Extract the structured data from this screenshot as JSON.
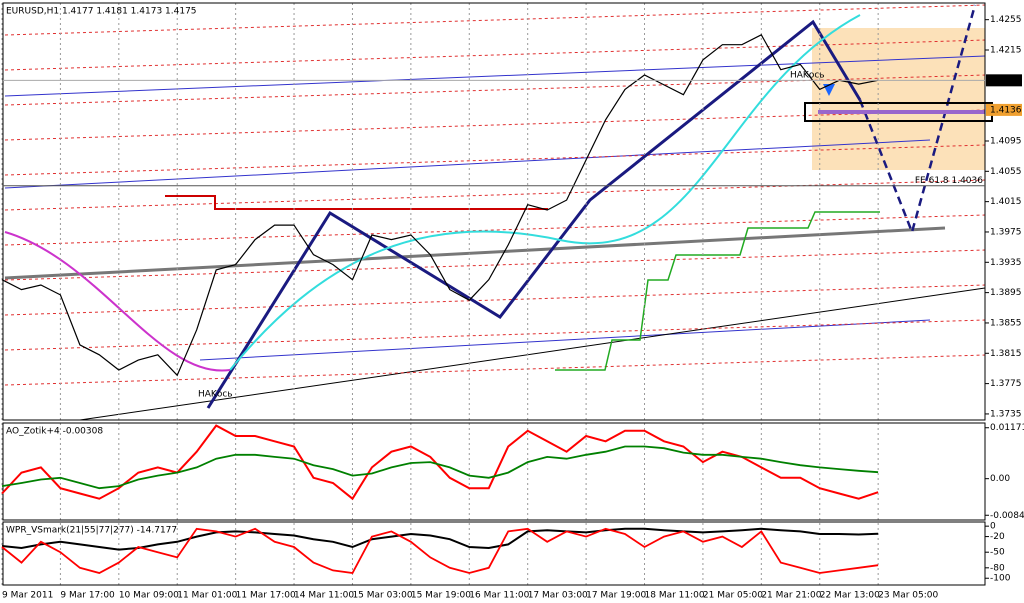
{
  "chart_data": [
    {
      "type": "line",
      "title": "EURUSD,H1  1.4177 1.4181 1.4173 1.4175",
      "categories": [
        "9 Mar 2011",
        null,
        null,
        "9 Mar 17:00",
        null,
        null,
        "10 Mar 09:00",
        null,
        null,
        "11 Mar 01:00",
        null,
        null,
        "11 Mar 17:00",
        null,
        null,
        "14 Mar 11:00",
        null,
        null,
        "15 Mar 03:00",
        null,
        null,
        "15 Mar 19:00",
        null,
        null,
        "16 Mar 11:00",
        null,
        null,
        "17 Mar 03:00",
        null,
        null,
        "17 Mar 19:00",
        null,
        null,
        "18 Mar 11:00",
        null,
        null,
        "21 Mar 05:00",
        null,
        null,
        "21 Mar 21:00",
        null,
        null,
        "22 Mar 13:00",
        null,
        null,
        "23 Mar 05:00"
      ],
      "values": [
        1.3912,
        1.3899,
        1.3905,
        1.3892,
        1.3826,
        1.3813,
        1.3793,
        1.3806,
        1.3813,
        1.3786,
        1.3846,
        1.3925,
        1.3932,
        1.3965,
        1.3984,
        1.3984,
        1.3945,
        1.3932,
        1.3912,
        1.3971,
        1.3965,
        1.3971,
        1.3945,
        1.3899,
        1.3885,
        1.3912,
        1.3958,
        1.4011,
        1.4004,
        1.4017,
        1.407,
        1.4123,
        1.4163,
        1.4182,
        1.4169,
        1.4156,
        1.4202,
        1.4222,
        1.4222,
        1.4235,
        1.4189,
        1.4196,
        1.4163,
        1.4175,
        1.417,
        1.4175
      ],
      "color": "#000000",
      "ylim": [
        1.3727,
        1.4277
      ],
      "yticks": [
        1.3735,
        1.3775,
        1.3815,
        1.3855,
        1.3895,
        1.3935,
        1.3975,
        1.4015,
        1.4055,
        1.4095,
        1.4215,
        1.4255
      ],
      "grid": true,
      "last_price": 1.4175,
      "level": 1.4136,
      "fe_label": "FE 61.8 1.4036",
      "fe_level": 1.4036,
      "annotations": [
        "HAKось",
        "HAKось"
      ]
    },
    {
      "type": "line",
      "title": "AO_Zotik+4 -0.00308",
      "series": [
        {
          "color": "#ff0000",
          "values": [
            -0.0034,
            0.0014,
            0.0026,
            -0.0022,
            -0.0034,
            -0.0046,
            -0.0022,
            0.0014,
            0.0026,
            0.0014,
            0.0062,
            0.0122,
            0.0098,
            0.0098,
            0.0086,
            0.0074,
            0.0002,
            -0.001,
            -0.0046,
            0.0026,
            0.0062,
            0.0074,
            0.005,
            0.0002,
            -0.0022,
            -0.0022,
            0.0074,
            0.011,
            0.0086,
            0.0062,
            0.0098,
            0.0086,
            0.011,
            0.011,
            0.0086,
            0.0074,
            0.0038,
            0.0062,
            0.005,
            0.0026,
            0.0002,
            0.0002,
            -0.0022,
            -0.0034,
            -0.0046,
            -0.0031
          ]
        },
        {
          "color": "#008000",
          "values": [
            -0.0017,
            -0.001,
            -0.0002,
            0.0002,
            -0.001,
            -0.0022,
            -0.0017,
            -0.0002,
            0.0007,
            0.0014,
            0.0026,
            0.0046,
            0.0055,
            0.0055,
            0.005,
            0.0046,
            0.0031,
            0.0022,
            0.0007,
            0.0012,
            0.0026,
            0.0036,
            0.0038,
            0.0026,
            0.0007,
            0.0002,
            0.0014,
            0.0038,
            0.005,
            0.0046,
            0.0055,
            0.0062,
            0.0074,
            0.0074,
            0.007,
            0.006,
            0.0055,
            0.0055,
            0.005,
            0.0046,
            0.0038,
            0.0031,
            0.0026,
            0.0022,
            0.0018,
            0.0015
          ]
        }
      ],
      "ylim": [
        -0.0095,
        0.0128
      ],
      "yticks": [
        -0.00841,
        {
          "value": 0,
          "label": "0.00"
        },
        0.01171
      ]
    },
    {
      "type": "line",
      "title": "WPR_VSmark(21|55|77|277) -14.7177",
      "series": [
        {
          "color": "#000000",
          "values": [
            -38,
            -42,
            -35,
            -30,
            -35,
            -40,
            -45,
            -42,
            -35,
            -30,
            -20,
            -12,
            -10,
            -12,
            -15,
            -18,
            -25,
            -30,
            -40,
            -25,
            -20,
            -15,
            -18,
            -25,
            -40,
            -42,
            -35,
            -10,
            -8,
            -10,
            -12,
            -8,
            -5,
            -5,
            -8,
            -10,
            -12,
            -10,
            -8,
            -5,
            -8,
            -10,
            -15,
            -15,
            -16,
            -14.7
          ]
        },
        {
          "color": "#ff0000",
          "values": [
            -40,
            -70,
            -30,
            -50,
            -80,
            -90,
            -70,
            -40,
            -50,
            -60,
            -5,
            -10,
            -20,
            -5,
            -30,
            -40,
            -70,
            -85,
            -90,
            -20,
            -10,
            -30,
            -60,
            -80,
            -90,
            -80,
            -10,
            -5,
            -30,
            -10,
            -20,
            -5,
            -15,
            -40,
            -20,
            -10,
            -30,
            -20,
            -40,
            -10,
            -70,
            -80,
            -90,
            -85,
            -80,
            -75
          ]
        }
      ],
      "ylim": [
        -113,
        8
      ],
      "yticks": [
        -100,
        -80,
        -50,
        -20,
        0
      ]
    }
  ]
}
